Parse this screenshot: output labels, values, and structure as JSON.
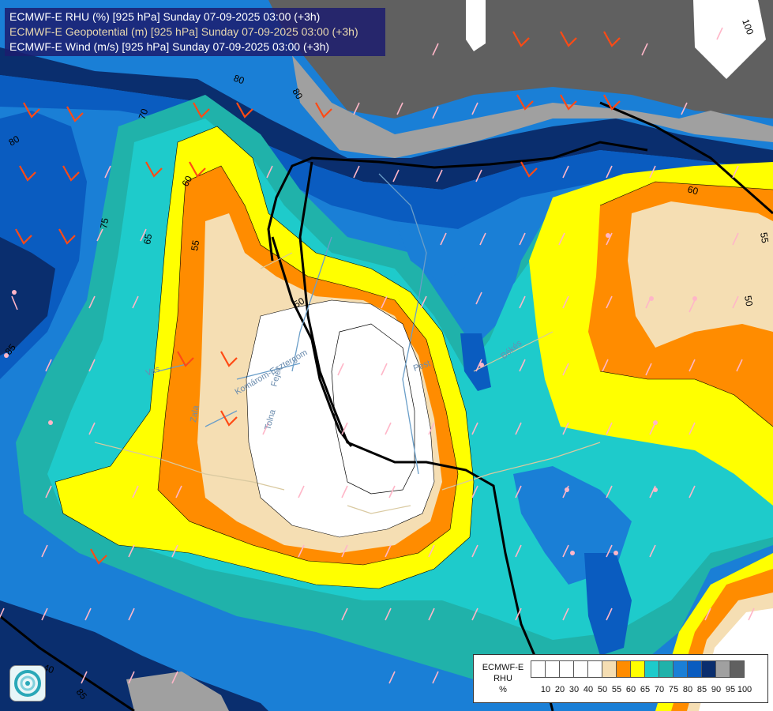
{
  "title_lines": [
    {
      "text": "ECMWF-E RHU (%) [925 hPa] Sunday 07-09-2025 03:00 (+3h)",
      "color": "#ffffff"
    },
    {
      "text": "ECMWF-E Geopotential (m) [925 hPa] Sunday 07-09-2025 03:00 (+3h)",
      "color": "#e8d8b0"
    },
    {
      "text": "ECMWF-E Wind (m/s) [925 hPa] Sunday 07-09-2025 03:00 (+3h)",
      "color": "#ffffff"
    }
  ],
  "legend": {
    "title": "ECMWF-E\nRHU\n%",
    "ticks": [
      "10",
      "20",
      "30",
      "40",
      "50",
      "55",
      "60",
      "65",
      "70",
      "75",
      "80",
      "85",
      "90",
      "95",
      "100"
    ],
    "colors": [
      "#ffffff",
      "#ffffff",
      "#ffffff",
      "#ffffff",
      "#ffffff",
      "#f5deb3",
      "#ff8c00",
      "#ffff00",
      "#1ecbcb",
      "#20b2aa",
      "#1a7fd6",
      "#0a5cc0",
      "#0a2e6e",
      "#a0a0a0",
      "#606060"
    ]
  },
  "contour_labels": [
    "80",
    "80",
    "70",
    "80",
    "75",
    "65",
    "60",
    "55",
    "50",
    "85",
    "60",
    "55",
    "50",
    "40",
    "85",
    "100"
  ],
  "place_labels": [
    "Vas",
    "Komárom-Esztergom",
    "Tolna",
    "Fejér",
    "Zala",
    "Pest",
    "Békés"
  ],
  "colors": {
    "rh_100": "#606060",
    "rh_95": "#a0a0a0",
    "rh_90": "#0a2e6e",
    "rh_85": "#0a5cc0",
    "rh_80": "#1a7fd6",
    "rh_75": "#20b2aa",
    "rh_70": "#1ecbcb",
    "rh_65": "#ffff00",
    "rh_60": "#ff8c00",
    "rh_55": "#f5deb3",
    "rh_50": "#ffffff",
    "border": "#000000",
    "rivers": "#6a9ec8",
    "admin": "#d9c9a0",
    "wind_strong": "#ff4a14",
    "wind_weak": "#ffb6c8"
  }
}
